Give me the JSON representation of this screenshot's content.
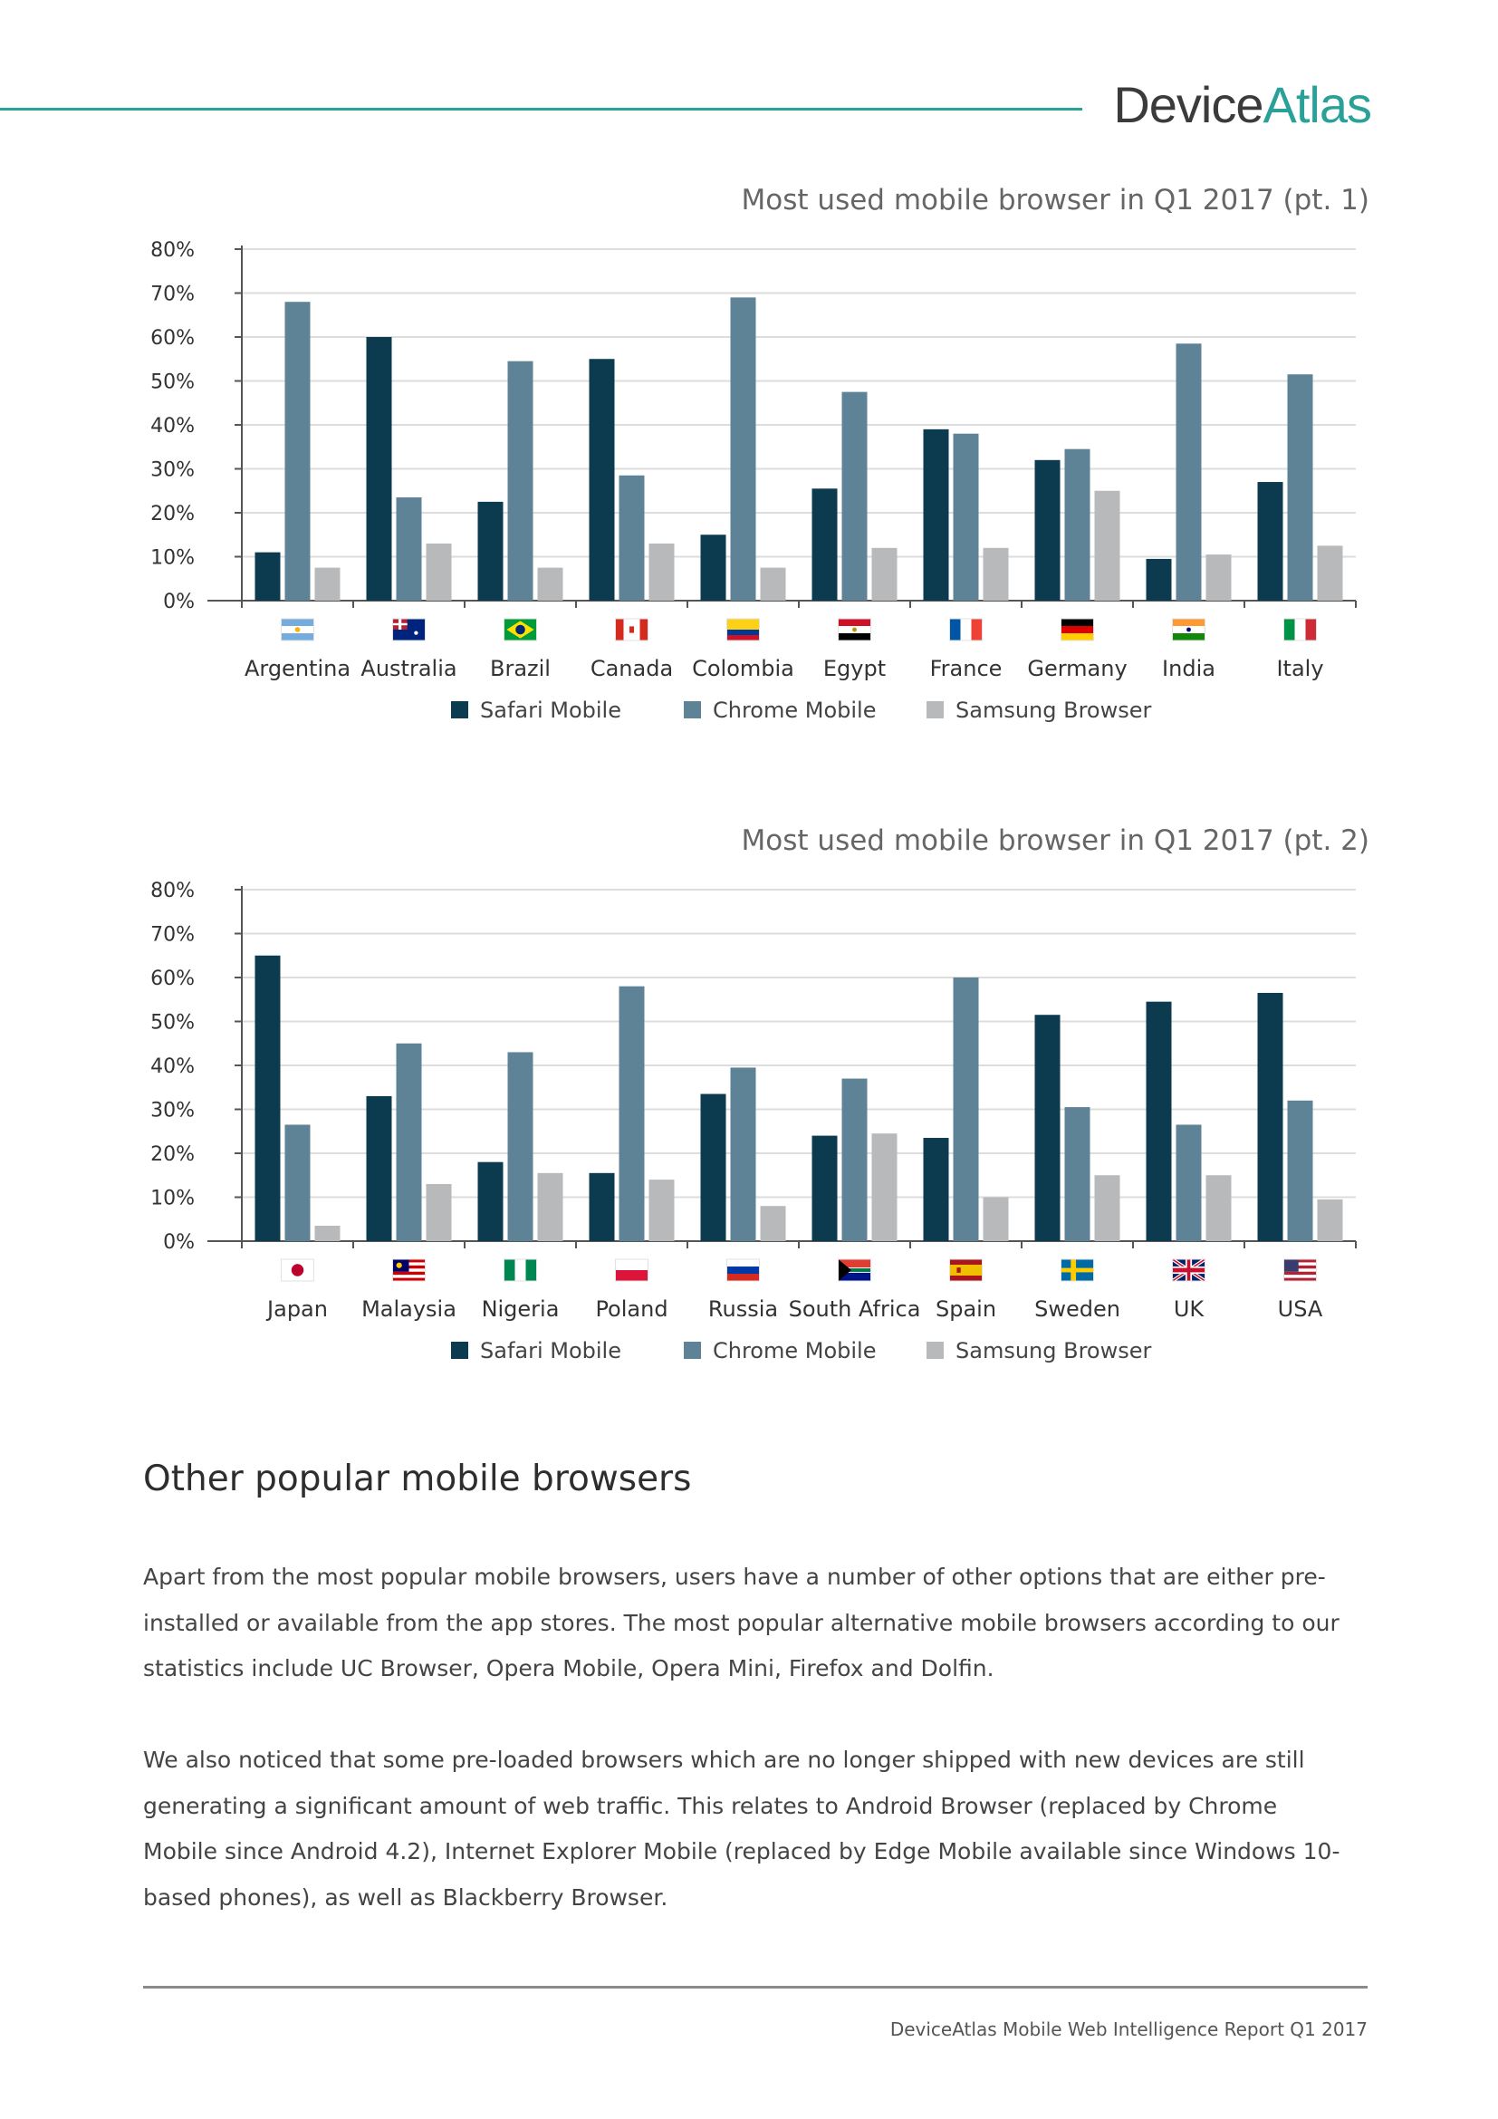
{
  "header": {
    "logo_part1": "Device",
    "logo_part2": "Atlas",
    "accent_color": "#2aa198"
  },
  "colors": {
    "safari": "#0c3a4f",
    "chrome": "#5f8396",
    "samsung": "#b7b9bb",
    "grid": "#dddddd",
    "axis": "#555555"
  },
  "chart_data": [
    {
      "type": "bar",
      "title": "Most used mobile browser in Q1 2017 (pt. 1)",
      "categories": [
        "Argentina",
        "Australia",
        "Brazil",
        "Canada",
        "Colombia",
        "Egypt",
        "France",
        "Germany",
        "India",
        "Italy"
      ],
      "flag_icons": [
        "argentina-flag-icon",
        "australia-flag-icon",
        "brazil-flag-icon",
        "canada-flag-icon",
        "colombia-flag-icon",
        "egypt-flag-icon",
        "france-flag-icon",
        "germany-flag-icon",
        "india-flag-icon",
        "italy-flag-icon"
      ],
      "series": [
        {
          "name": "Safari Mobile",
          "values": [
            11,
            60,
            22.5,
            55,
            15,
            25.5,
            39,
            32,
            9.5,
            27
          ]
        },
        {
          "name": "Chrome Mobile",
          "values": [
            68,
            23.5,
            54.5,
            28.5,
            69,
            47.5,
            38,
            34.5,
            58.5,
            51.5
          ]
        },
        {
          "name": "Samsung Browser",
          "values": [
            7.5,
            13,
            7.5,
            13,
            7.5,
            12,
            12,
            25,
            10.5,
            12.5
          ]
        }
      ],
      "yticks": [
        "0%",
        "10%",
        "20%",
        "30%",
        "40%",
        "50%",
        "60%",
        "70%",
        "80%"
      ],
      "ylim": [
        0,
        80
      ],
      "xlabel": "",
      "ylabel": ""
    },
    {
      "type": "bar",
      "title": "Most used mobile browser in Q1 2017 (pt. 2)",
      "categories": [
        "Japan",
        "Malaysia",
        "Nigeria",
        "Poland",
        "Russia",
        "South Africa",
        "Spain",
        "Sweden",
        "UK",
        "USA"
      ],
      "flag_icons": [
        "japan-flag-icon",
        "malaysia-flag-icon",
        "nigeria-flag-icon",
        "poland-flag-icon",
        "russia-flag-icon",
        "south-africa-flag-icon",
        "spain-flag-icon",
        "sweden-flag-icon",
        "uk-flag-icon",
        "usa-flag-icon"
      ],
      "series": [
        {
          "name": "Safari Mobile",
          "values": [
            65,
            33,
            18,
            15.5,
            33.5,
            24,
            23.5,
            51.5,
            54.5,
            56.5
          ]
        },
        {
          "name": "Chrome Mobile",
          "values": [
            26.5,
            45,
            43,
            58,
            39.5,
            37,
            60,
            30.5,
            26.5,
            32
          ]
        },
        {
          "name": "Samsung Browser",
          "values": [
            3.5,
            13,
            15.5,
            14,
            8,
            24.5,
            10,
            15,
            15,
            9.5
          ]
        }
      ],
      "yticks": [
        "0%",
        "10%",
        "20%",
        "30%",
        "40%",
        "50%",
        "60%",
        "70%",
        "80%"
      ],
      "ylim": [
        0,
        80
      ],
      "xlabel": "",
      "ylabel": ""
    }
  ],
  "section": {
    "heading": "Other popular mobile browsers",
    "paragraphs": [
      "Apart from the most popular mobile browsers, users have a number of other options that are either pre-installed or available from the app stores. The most popular alternative mobile browsers according to our statistics include UC Browser, Opera Mobile, Opera Mini, Firefox and Dolfin.",
      "We also noticed that some pre-loaded browsers which are no longer shipped with new devices are still generating a significant amount of web traffic. This relates to Android Browser (replaced by Chrome Mobile since Android 4.2), Internet Explorer Mobile (replaced by Edge Mobile available since Windows 10-based phones), as well as Blackberry Browser."
    ]
  },
  "footer": {
    "text": "DeviceAtlas Mobile Web Intelligence Report Q1 2017"
  }
}
